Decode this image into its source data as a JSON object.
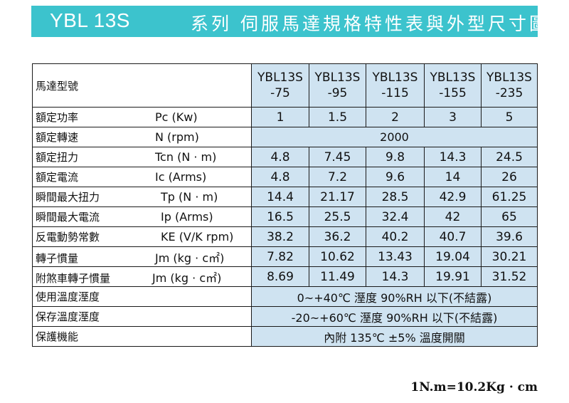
{
  "title": {
    "model": "YBL 13S",
    "description": "系列 伺服馬達規格特性表與外型尺寸圖"
  },
  "table": {
    "header_label": "馬達型號",
    "models": [
      {
        "line1": "YBL13S",
        "line2": "-75"
      },
      {
        "line1": "YBL13S",
        "line2": "-95"
      },
      {
        "line1": "YBL13S",
        "line2": "-115"
      },
      {
        "line1": "YBL13S",
        "line2": "-155"
      },
      {
        "line1": "YBL13S",
        "line2": "-235"
      }
    ],
    "rows": [
      {
        "name": "額定功率",
        "unit": "Pc (Kw)",
        "values": [
          "1",
          "1.5",
          "2",
          "3",
          "5"
        ]
      },
      {
        "name": "額定轉速",
        "unit": "N  (rpm)",
        "span": "2000"
      },
      {
        "name": "額定扭力",
        "unit": "Tcn (N · m)",
        "values": [
          "4.8",
          "7.45",
          "9.8",
          "14.3",
          "24.5"
        ]
      },
      {
        "name": "額定電流",
        "unit": "Ic  (Arms)",
        "values": [
          "4.8",
          "7.2",
          "9.6",
          "14",
          "26"
        ]
      },
      {
        "name": "瞬間最大扭力",
        "unit": "Tp (N · m)",
        "values": [
          "14.4",
          "21.17",
          "28.5",
          "42.9",
          "61.25"
        ]
      },
      {
        "name": "瞬間最大電流",
        "unit": "Ip  (Arms)",
        "values": [
          "16.5",
          "25.5",
          "32.4",
          "42",
          "65"
        ]
      },
      {
        "name": "反電動勢常數",
        "unit": "KE (V/K rpm)",
        "values": [
          "38.2",
          "36.2",
          "40.2",
          "40.7",
          "39.6"
        ]
      },
      {
        "name": "轉子慣量",
        "unit": "Jm (kg · c㎡)",
        "values": [
          "7.82",
          "10.62",
          "13.43",
          "19.04",
          "30.21"
        ]
      },
      {
        "name": "附煞車轉子慣量",
        "unit": "Jm (kg · c㎡)",
        "values": [
          "8.69",
          "11.49",
          "14.3",
          "19.91",
          "31.52"
        ]
      },
      {
        "name": "使用溫度溼度",
        "unit": "",
        "span": "0~+40℃   溼度 90%RH 以下(不結露)"
      },
      {
        "name": "保存溫度溼度",
        "unit": "",
        "span": "-20~+60℃   溼度 90%RH 以下(不結露)"
      },
      {
        "name": "保護機能",
        "unit": "",
        "span": "內附 135℃ ±5% 溫度開關"
      }
    ]
  },
  "note": "1N.m=10.2Kg · cm"
}
